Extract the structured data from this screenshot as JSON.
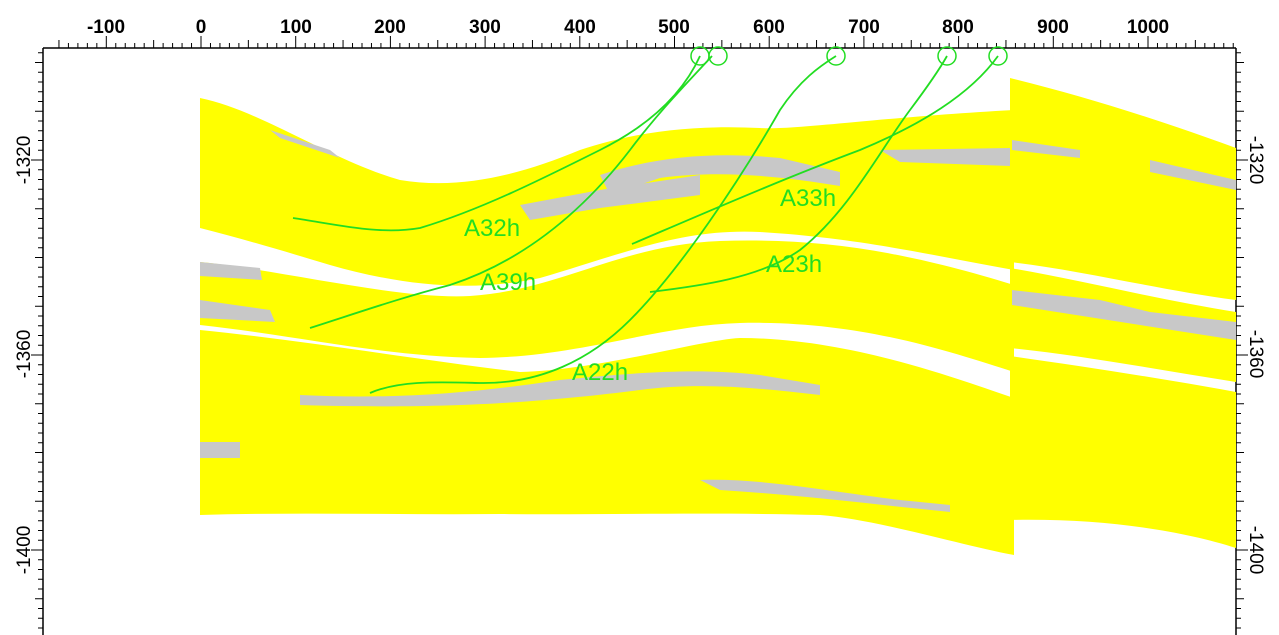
{
  "section": {
    "x_tick_labels": [
      "-100",
      "0",
      "100",
      "200",
      "300",
      "400",
      "500",
      "600",
      "700",
      "800",
      "900",
      "1000"
    ],
    "y_tick_labels": [
      "-1320",
      "-1360",
      "-1400"
    ],
    "colors": {
      "zone_fill": "#ffff00",
      "shale_streak": "#c8c8c8",
      "well_path": "#22dd22",
      "background": "#ffffff"
    },
    "wells": [
      {
        "label": "A32h"
      },
      {
        "label": "A39h"
      },
      {
        "label": "A33h"
      },
      {
        "label": "A23h"
      },
      {
        "label": "A22h"
      }
    ]
  }
}
